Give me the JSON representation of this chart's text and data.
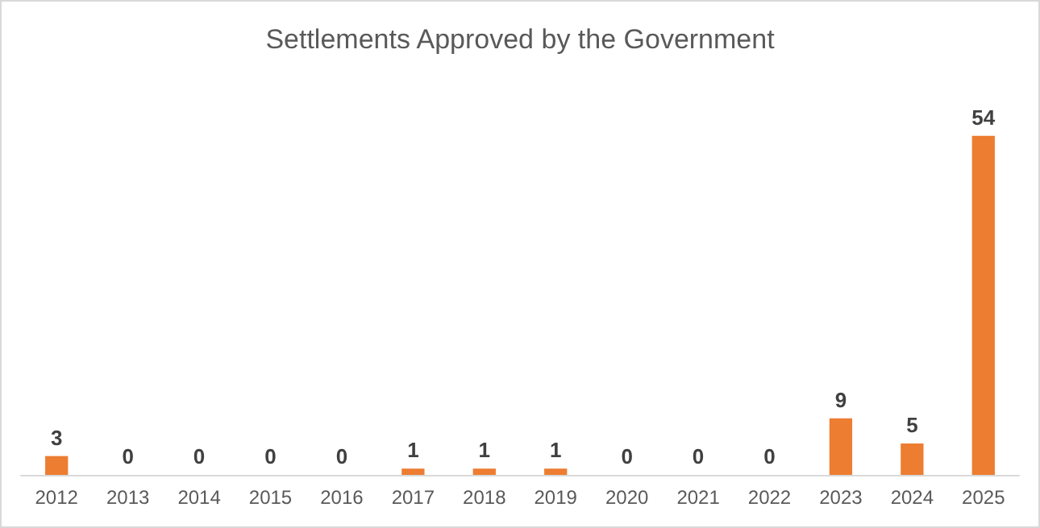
{
  "chart_data": {
    "type": "bar",
    "title": "Settlements Approved by the Government",
    "categories": [
      "2012",
      "2013",
      "2014",
      "2015",
      "2016",
      "2017",
      "2018",
      "2019",
      "2020",
      "2021",
      "2022",
      "2023",
      "2024",
      "2025"
    ],
    "values": [
      3,
      0,
      0,
      0,
      0,
      1,
      1,
      1,
      0,
      0,
      0,
      9,
      5,
      54
    ],
    "color": "#ed7d31",
    "data_labels": true
  }
}
